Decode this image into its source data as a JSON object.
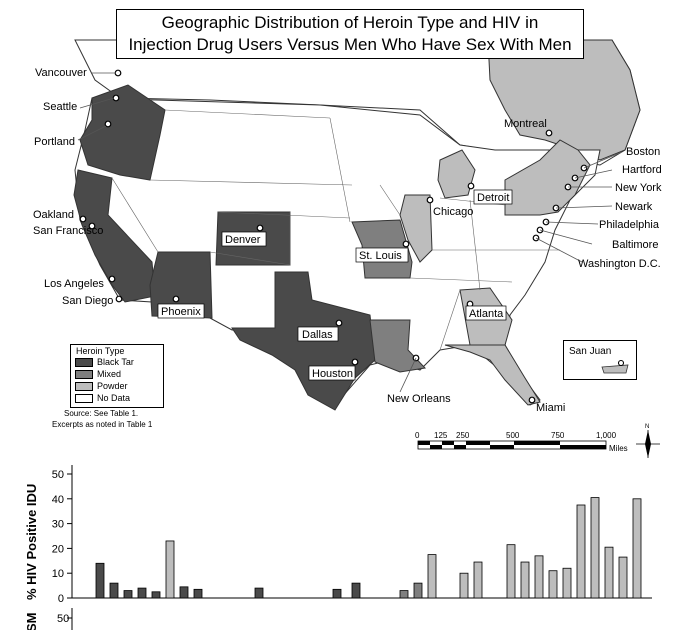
{
  "title": {
    "line1": "Geographic Distribution of Heroin Type and HIV in",
    "line2": "Injection Drug Users Versus Men Who Have Sex With Men"
  },
  "legend": {
    "title": "Heroin Type",
    "items": [
      {
        "label": "Black Tar",
        "color": "#4a4a4a"
      },
      {
        "label": "Mixed",
        "color": "#7f7f7f"
      },
      {
        "label": "Powder",
        "color": "#bdbdbd"
      },
      {
        "label": "No Data",
        "color": "#ffffff"
      }
    ]
  },
  "source_note": {
    "line1": "Source: See Table 1.",
    "line2": "Excerpts as noted in Table 1"
  },
  "cities": {
    "vancouver": "Vancouver",
    "seattle": "Seattle",
    "portland": "Portland",
    "oakland": "Oakland",
    "san_francisco": "San Francisco",
    "los_angeles": "Los Angeles",
    "san_diego": "San Diego",
    "phoenix": "Phoenix",
    "denver": "Denver",
    "dallas": "Dallas",
    "houston": "Houston",
    "st_louis": "St. Louis",
    "chicago": "Chicago",
    "detroit": "Detroit",
    "montreal": "Montreal",
    "boston": "Boston",
    "hartford": "Hartford",
    "new_york": "New York",
    "newark": "Newark",
    "philadelphia": "Philadelphia",
    "baltimore": "Baltimore",
    "washington": "Washington D.C.",
    "atlanta": "Atlanta",
    "new_orleans": "New Orleans",
    "miami": "Miami",
    "san_juan": "San Juan"
  },
  "scale_bar": {
    "ticks": [
      "0",
      "125",
      "250",
      "500",
      "750",
      "1,000"
    ],
    "unit": "Miles"
  },
  "north_arrow": "N",
  "chart_data": {
    "type": "bar",
    "ylabel": "% HIV Positive IDU",
    "ylim": [
      0,
      50
    ],
    "yticks": [
      "0",
      "10",
      "20",
      "30",
      "40",
      "50"
    ],
    "bars": [
      {
        "value": 14,
        "heroin": "Black Tar"
      },
      {
        "value": 6,
        "heroin": "Black Tar"
      },
      {
        "value": 3,
        "heroin": "Black Tar"
      },
      {
        "value": 4,
        "heroin": "Black Tar"
      },
      {
        "value": 2.5,
        "heroin": "Black Tar"
      },
      {
        "value": 23,
        "heroin": "Powder"
      },
      {
        "value": 4.5,
        "heroin": "Black Tar"
      },
      {
        "value": 3.5,
        "heroin": "Black Tar"
      },
      {
        "value": 4,
        "heroin": "Black Tar"
      },
      {
        "value": 3.5,
        "heroin": "Black Tar"
      },
      {
        "value": 6,
        "heroin": "Black Tar"
      },
      {
        "value": 3,
        "heroin": "Mixed"
      },
      {
        "value": 6,
        "heroin": "Mixed"
      },
      {
        "value": 17.5,
        "heroin": "Powder"
      },
      {
        "value": 10,
        "heroin": "Powder"
      },
      {
        "value": 14.5,
        "heroin": "Powder"
      },
      {
        "value": 21.5,
        "heroin": "Powder"
      },
      {
        "value": 14.5,
        "heroin": "Powder"
      },
      {
        "value": 17,
        "heroin": "Powder"
      },
      {
        "value": 11,
        "heroin": "Powder"
      },
      {
        "value": 12,
        "heroin": "Powder"
      },
      {
        "value": 37.5,
        "heroin": "Powder"
      },
      {
        "value": 40.5,
        "heroin": "Powder"
      },
      {
        "value": 20.5,
        "heroin": "Powder"
      },
      {
        "value": 16.5,
        "heroin": "Powder"
      },
      {
        "value": 40,
        "heroin": "Powder"
      }
    ],
    "second_panel": {
      "ylabel": "SM",
      "yticks": [
        "50"
      ]
    }
  }
}
